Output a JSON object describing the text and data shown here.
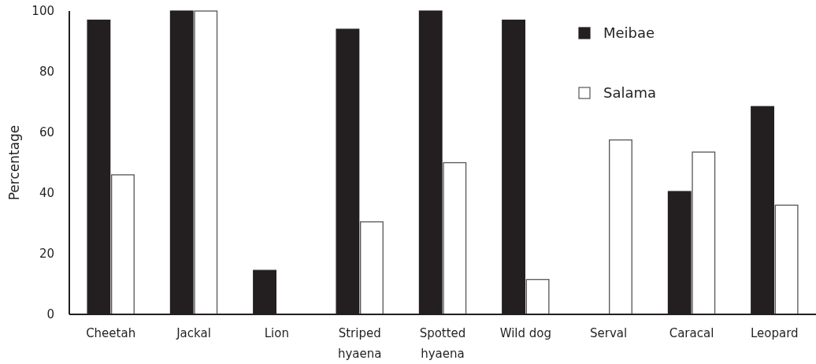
{
  "chart_data": {
    "type": "bar",
    "ylabel": "Percentage",
    "categories": [
      "Cheetah",
      "Jackal",
      "Lion",
      "Striped hyaena",
      "Spotted hyaena",
      "Wild dog",
      "Serval",
      "Caracal",
      "Leopard"
    ],
    "series": [
      {
        "name": "Meibae",
        "color": "#231f20",
        "values": [
          97,
          100,
          14.5,
          94,
          100,
          97,
          0,
          40.5,
          68.5
        ]
      },
      {
        "name": "Salama",
        "color": "#ffffff",
        "values": [
          46,
          100,
          0,
          30.5,
          50,
          11.5,
          57.5,
          53.5,
          36
        ]
      }
    ],
    "ylim": [
      0,
      100
    ],
    "yticks": [
      0,
      20,
      40,
      60,
      80,
      100
    ],
    "grid": false,
    "legend": "top right"
  }
}
